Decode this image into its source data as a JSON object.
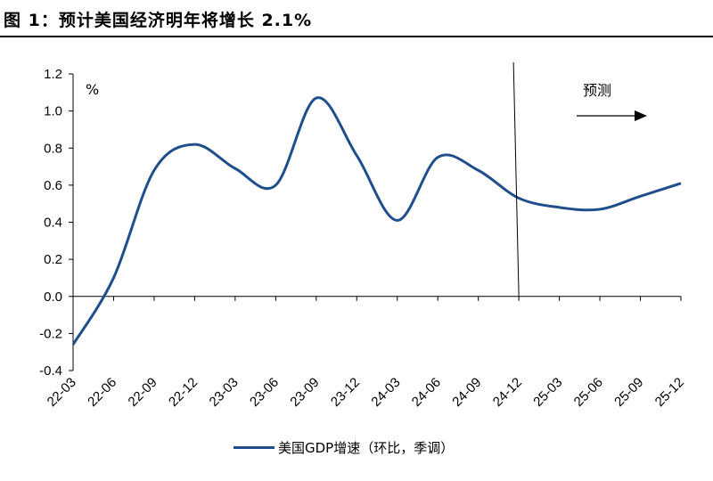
{
  "figure": {
    "title": "图 1：预计美国经济明年将增长 2.1%"
  },
  "chart_data": {
    "type": "line",
    "unit_label": "%",
    "xlabel": "",
    "ylabel": "",
    "categories": [
      "22-03",
      "22-06",
      "22-09",
      "22-12",
      "23-03",
      "23-06",
      "23-09",
      "23-12",
      "24-03",
      "24-06",
      "24-09",
      "24-12",
      "25-03",
      "25-06",
      "25-09",
      "25-12"
    ],
    "yticks": [
      "-0.4",
      "-0.2",
      "0.0",
      "0.2",
      "0.4",
      "0.6",
      "0.8",
      "1.0",
      "1.2"
    ],
    "ylim": [
      -0.4,
      1.2
    ],
    "grid": false,
    "legend_position": "bottom",
    "forecast_marker_at": "24-12",
    "forecast_label": "预测",
    "series": [
      {
        "name": "美国GDP增速（环比，季调）",
        "color": "#1f4e8c",
        "values": [
          -0.26,
          0.1,
          0.68,
          0.82,
          0.69,
          0.6,
          1.07,
          0.76,
          0.41,
          0.75,
          0.68,
          0.53,
          0.48,
          0.47,
          0.54,
          0.61
        ]
      }
    ]
  }
}
